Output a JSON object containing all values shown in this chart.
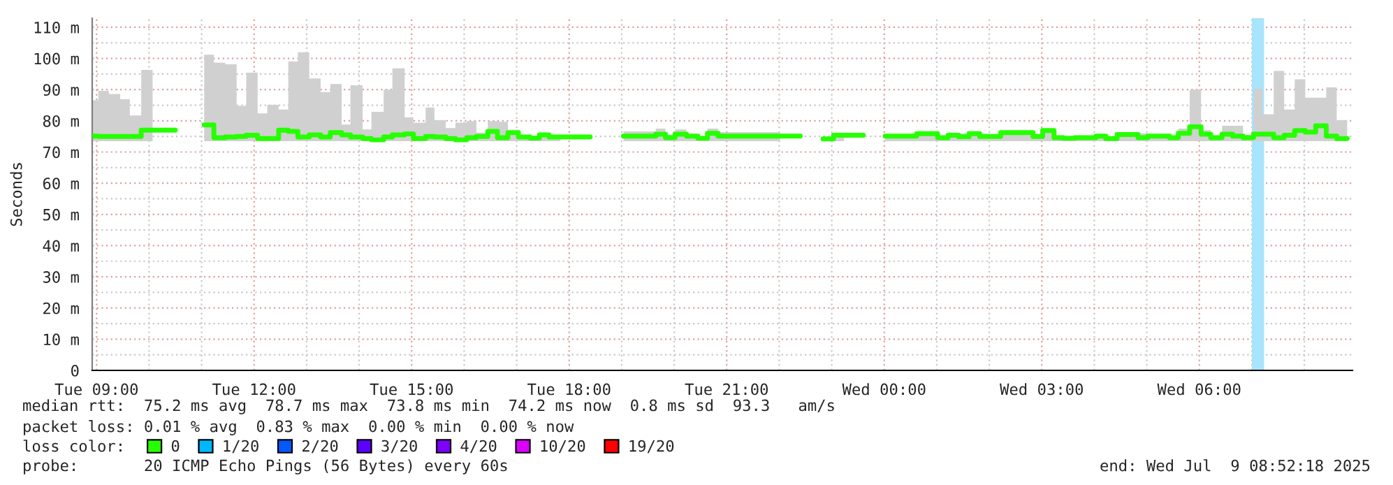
{
  "chart_data": {
    "type": "step",
    "ylabel": "Seconds",
    "xlim": [
      "2025-07-08T08:55",
      "2025-07-09T08:55"
    ],
    "ylim": [
      0,
      112.9
    ],
    "xticks": [
      {
        "value": "2025-07-08T09:00",
        "label": "Tue 09:00"
      },
      {
        "value": "2025-07-08T12:00",
        "label": "Tue 12:00"
      },
      {
        "value": "2025-07-08T15:00",
        "label": "Tue 15:00"
      },
      {
        "value": "2025-07-08T18:00",
        "label": "Tue 18:00"
      },
      {
        "value": "2025-07-08T21:00",
        "label": "Tue 21:00"
      },
      {
        "value": "2025-07-09T00:00",
        "label": "Wed 00:00"
      },
      {
        "value": "2025-07-09T03:00",
        "label": "Wed 03:00"
      },
      {
        "value": "2025-07-09T06:00",
        "label": "Wed 06:00"
      }
    ],
    "yticks": [
      0,
      {
        "value": 10,
        "label": "10 m"
      },
      {
        "value": 20,
        "label": "20 m"
      },
      {
        "value": 30,
        "label": "30 m"
      },
      {
        "value": 40,
        "label": "40 m"
      },
      {
        "value": 50,
        "label": "50 m"
      },
      {
        "value": 60,
        "label": "60 m"
      },
      {
        "value": 70,
        "label": "70 m"
      },
      {
        "value": 80,
        "label": "80 m"
      },
      {
        "value": 90,
        "label": "90 m"
      },
      {
        "value": 100,
        "label": "100 m"
      },
      {
        "value": 110,
        "label": "110 m"
      }
    ],
    "grid": true,
    "legend": "bottom",
    "bands": [
      {
        "axis": "x",
        "from": "2025-07-09T07:00",
        "to": "2025-07-09T07:14",
        "color": "#a8e4fc"
      }
    ],
    "series": [
      {
        "name": "0",
        "color": "#26ff00",
        "x": [
          "2025-07-08T08:55",
          "2025-07-08T09:02",
          "2025-07-08T09:14",
          "2025-07-08T09:27",
          "2025-07-08T09:38",
          "2025-07-08T09:51",
          "2025-07-08T10:04",
          "2025-07-08T10:30",
          "2025-07-08T11:03",
          "2025-07-08T11:14",
          "2025-07-08T11:27",
          "2025-07-08T11:40",
          "2025-07-08T11:51",
          "2025-07-08T12:04",
          "2025-07-08T12:15",
          "2025-07-08T12:28",
          "2025-07-08T12:39",
          "2025-07-08T12:50",
          "2025-07-08T13:03",
          "2025-07-08T13:16",
          "2025-07-08T13:27",
          "2025-07-08T13:40",
          "2025-07-08T13:50",
          "2025-07-08T14:04",
          "2025-07-08T14:14",
          "2025-07-08T14:28",
          "2025-07-08T14:38",
          "2025-07-08T14:52",
          "2025-07-08T15:02",
          "2025-07-08T15:16",
          "2025-07-08T15:26",
          "2025-07-08T15:39",
          "2025-07-08T15:50",
          "2025-07-08T16:03",
          "2025-07-08T16:14",
          "2025-07-08T16:27",
          "2025-07-08T16:38",
          "2025-07-08T16:50",
          "2025-07-08T17:02",
          "2025-07-08T17:15",
          "2025-07-08T17:26",
          "2025-07-08T17:37",
          "2025-07-08T17:50",
          "2025-07-08T18:24",
          "2025-07-08T19:02",
          "2025-07-08T19:39",
          "2025-07-08T19:50",
          "2025-07-08T20:01",
          "2025-07-08T20:14",
          "2025-07-08T20:27",
          "2025-07-08T20:38",
          "2025-07-08T20:50",
          "2025-07-08T22:01",
          "2025-07-08T22:24",
          "2025-07-08T22:50",
          "2025-07-08T23:02",
          "2025-07-08T23:14",
          "2025-07-08T23:36",
          "2025-07-09T00:01",
          "2025-07-09T00:37",
          "2025-07-09T01:01",
          "2025-07-09T01:13",
          "2025-07-09T01:25",
          "2025-07-09T01:37",
          "2025-07-09T01:49",
          "2025-07-09T02:13",
          "2025-07-09T02:50",
          "2025-07-09T03:01",
          "2025-07-09T03:14",
          "2025-07-09T03:25",
          "2025-07-09T03:38",
          "2025-07-09T04:02",
          "2025-07-09T04:13",
          "2025-07-09T04:26",
          "2025-07-09T04:50",
          "2025-07-09T05:01",
          "2025-07-09T05:14",
          "2025-07-09T05:26",
          "2025-07-09T05:36",
          "2025-07-09T05:49",
          "2025-07-09T06:02",
          "2025-07-09T06:13",
          "2025-07-09T06:26",
          "2025-07-09T06:38",
          "2025-07-09T06:50",
          "2025-07-09T07:02",
          "2025-07-09T07:12",
          "2025-07-09T07:25",
          "2025-07-09T07:37",
          "2025-07-09T07:49",
          "2025-07-09T08:01",
          "2025-07-09T08:13",
          "2025-07-09T08:25",
          "2025-07-09T08:37",
          "2025-07-09T08:49"
        ],
        "values": [
          75.1,
          75,
          75,
          75,
          75,
          77,
          77,
          null,
          78.7,
          74.6,
          74.8,
          75,
          75.4,
          74.3,
          74.3,
          77,
          76.6,
          74.8,
          75.5,
          74.8,
          76.2,
          75.5,
          74.8,
          74.3,
          73.9,
          74.8,
          75.5,
          75.8,
          74.3,
          75,
          74.8,
          74.3,
          73.9,
          74.6,
          75,
          76.6,
          74.6,
          76.2,
          74.8,
          74.5,
          75.5,
          74.8,
          74.8,
          null,
          75.1,
          75.7,
          74.6,
          75.7,
          75.1,
          74.4,
          76,
          75.1,
          75.1,
          null,
          74.2,
          75.4,
          75.4,
          null,
          75.1,
          75.9,
          74.6,
          75.4,
          74.9,
          75.9,
          75,
          76.2,
          75,
          76.9,
          74.6,
          74.4,
          74.6,
          75.1,
          74.3,
          75.6,
          74.6,
          75.1,
          75.1,
          74.6,
          76,
          78.1,
          75.7,
          74.6,
          75.7,
          75.1,
          74.6,
          75.7,
          75.7,
          74.6,
          75.4,
          76.9,
          76.4,
          78.4,
          75.1,
          74.3,
          74.3
        ],
        "lower": [
          73.5,
          73.5,
          73.5,
          73.5,
          73.5,
          73.5,
          73.5,
          null,
          73.5,
          73.5,
          73.5,
          73.5,
          73.5,
          73.5,
          73.5,
          73.5,
          73.5,
          73.5,
          73.5,
          73.5,
          73.5,
          73.5,
          73.5,
          73.5,
          73.5,
          73.5,
          73.5,
          73.5,
          73.5,
          73.5,
          73.5,
          73.5,
          73.5,
          73.5,
          73.5,
          73.5,
          73.5,
          73.5,
          73.5,
          73.5,
          73.5,
          73.5,
          73.5,
          null,
          73.5,
          73.5,
          73.5,
          73.5,
          73.5,
          73.5,
          73.5,
          73.5,
          73.5,
          null,
          73.5,
          73.5,
          73.5,
          null,
          73.5,
          73.5,
          73.5,
          73.5,
          73.5,
          73.5,
          73.5,
          73.5,
          73.5,
          73.5,
          73.5,
          73.5,
          73.5,
          73.5,
          73.5,
          73.5,
          73.5,
          73.5,
          73.5,
          73.5,
          73.5,
          73.5,
          73.5,
          73.5,
          73.5,
          73.5,
          73.5,
          73.5,
          73.5,
          73.5,
          73.5,
          73.5,
          73.5,
          73.5,
          73.5,
          73.5,
          73.5
        ],
        "upper": [
          86.6,
          89.6,
          88.6,
          86.9,
          81.7,
          96.3,
          96.3,
          null,
          101.2,
          98.6,
          98.1,
          84.8,
          95.4,
          82.4,
          85.1,
          83.6,
          99,
          102,
          93.6,
          89.2,
          91.8,
          78.8,
          91.4,
          77.2,
          82.9,
          90,
          96.8,
          81.1,
          79.4,
          84.3,
          80.2,
          77.7,
          79.4,
          79.9,
          76.2,
          79.9,
          79.7,
          76.6,
          75.5,
          75,
          76,
          75.5,
          75.5,
          null,
          76.6,
          77.5,
          75.5,
          77.2,
          75.7,
          75,
          77.5,
          76.4,
          76.4,
          null,
          74.8,
          75.8,
          75.8,
          null,
          75.5,
          76.3,
          75,
          75.8,
          76,
          76.3,
          75.4,
          76.6,
          75.4,
          77.3,
          75,
          74.8,
          75,
          75.5,
          74.7,
          76,
          76,
          75.5,
          75.5,
          75,
          77.5,
          90,
          77,
          75,
          78.4,
          78.4,
          75.5,
          90.3,
          82.1,
          96,
          83.6,
          93.3,
          87.4,
          87.4,
          90.7,
          80.2,
          80.2
        ]
      },
      {
        "name": "1/20",
        "color": "#00b8ff"
      },
      {
        "name": "2/20",
        "color": "#0059ff"
      },
      {
        "name": "3/20",
        "color": "#5e00ff"
      },
      {
        "name": "4/20",
        "color": "#7e00ff"
      },
      {
        "name": "10/20",
        "color": "#dd00ff"
      },
      {
        "name": "19/20",
        "color": "#ff0000"
      }
    ],
    "annotations": [
      "median rtt:  75.2 ms avg  78.7 ms max  73.8 ms min  74.2 ms now  0.8 ms sd  93.3   am/s",
      "packet loss: 0.01 % avg  0.83 % max  0.00 % min  0.00 % now",
      "loss color:",
      "probe:       20 ICMP Echo Pings (56 Bytes) every 60s",
      "end: Wed Jul  9 08:52:18 2025"
    ]
  }
}
